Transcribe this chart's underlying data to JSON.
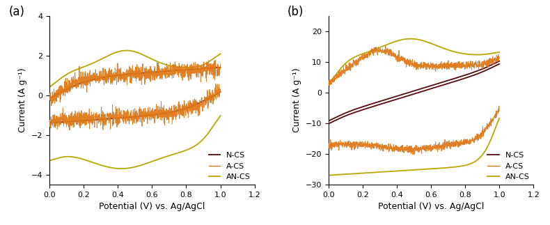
{
  "fig_width": 7.9,
  "fig_height": 3.23,
  "dpi": 100,
  "background_color": "#ffffff",
  "panel_labels": [
    "(a)",
    "(b)"
  ],
  "panel_label_fontsize": 12,
  "xlabel": "Potential (V) vs. Ag/AgCl",
  "ylabel": "Current (A g⁻¹)",
  "xlabel_fontsize": 9,
  "ylabel_fontsize": 9,
  "tick_fontsize": 8,
  "legend_labels": [
    "N-CS",
    "A-CS",
    "AN-CS"
  ],
  "legend_fontsize": 8,
  "colors": {
    "NCS": "#5a0a0a",
    "ACS": "#e07818",
    "ANCS": "#b8a800"
  },
  "plot_a": {
    "xlim": [
      0.0,
      1.2
    ],
    "ylim": [
      -4.5,
      4.0
    ],
    "xticks": [
      0.0,
      0.2,
      0.4,
      0.6,
      0.8,
      1.0,
      1.2
    ],
    "yticks": [
      -4,
      -2,
      0,
      2,
      4
    ]
  },
  "plot_b": {
    "xlim": [
      0.0,
      1.2
    ],
    "ylim": [
      -30,
      25
    ],
    "xticks": [
      0.0,
      0.2,
      0.4,
      0.6,
      0.8,
      1.0,
      1.2
    ],
    "yticks": [
      -30,
      -20,
      -10,
      0,
      10,
      20
    ]
  }
}
